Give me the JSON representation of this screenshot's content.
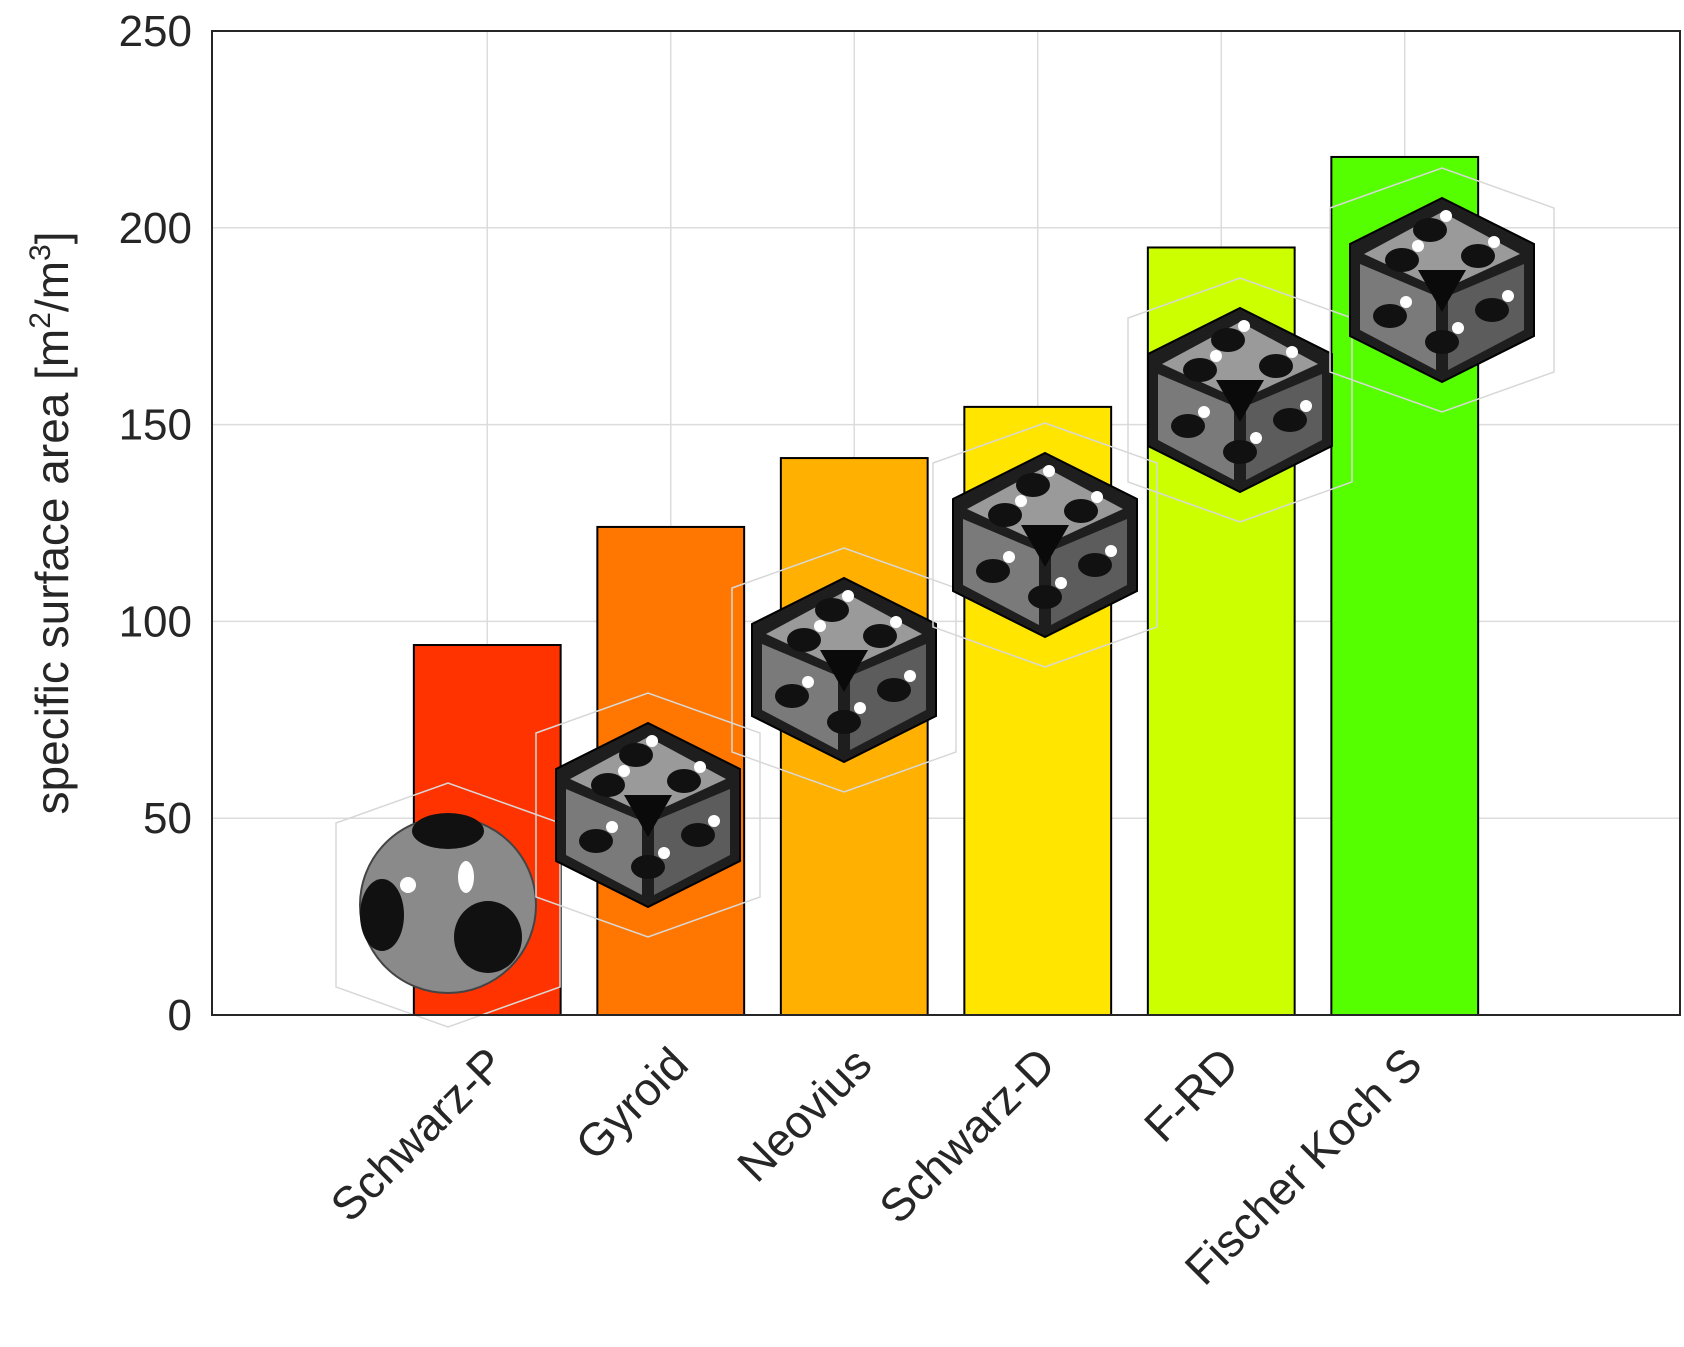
{
  "chart_data": {
    "type": "bar",
    "categories": [
      "Schwarz-P",
      "Gyroid",
      "Neovius",
      "Schwarz-D",
      "F-RD",
      "Fischer Koch S"
    ],
    "values": [
      94,
      124,
      141.5,
      154.5,
      195,
      218
    ],
    "colors": [
      "#ff3300",
      "#ff7700",
      "#ffb000",
      "#ffe500",
      "#ccff00",
      "#55ff00"
    ],
    "ylabel": "specific surface area [m2/m3]",
    "ylabel_parts": {
      "main": "specific surface area [m",
      "exp1": "2",
      "mid": "/m",
      "exp2": "3",
      "end": "]"
    },
    "ylim": [
      0,
      250
    ],
    "yticks": [
      "0",
      "50",
      "100",
      "150",
      "200",
      "250"
    ],
    "grid": true,
    "icons": [
      "schwarz-p-structure-icon",
      "gyroid-structure-icon",
      "neovius-structure-icon",
      "schwarz-d-structure-icon",
      "f-rd-structure-icon",
      "fischer-koch-s-structure-icon"
    ]
  }
}
